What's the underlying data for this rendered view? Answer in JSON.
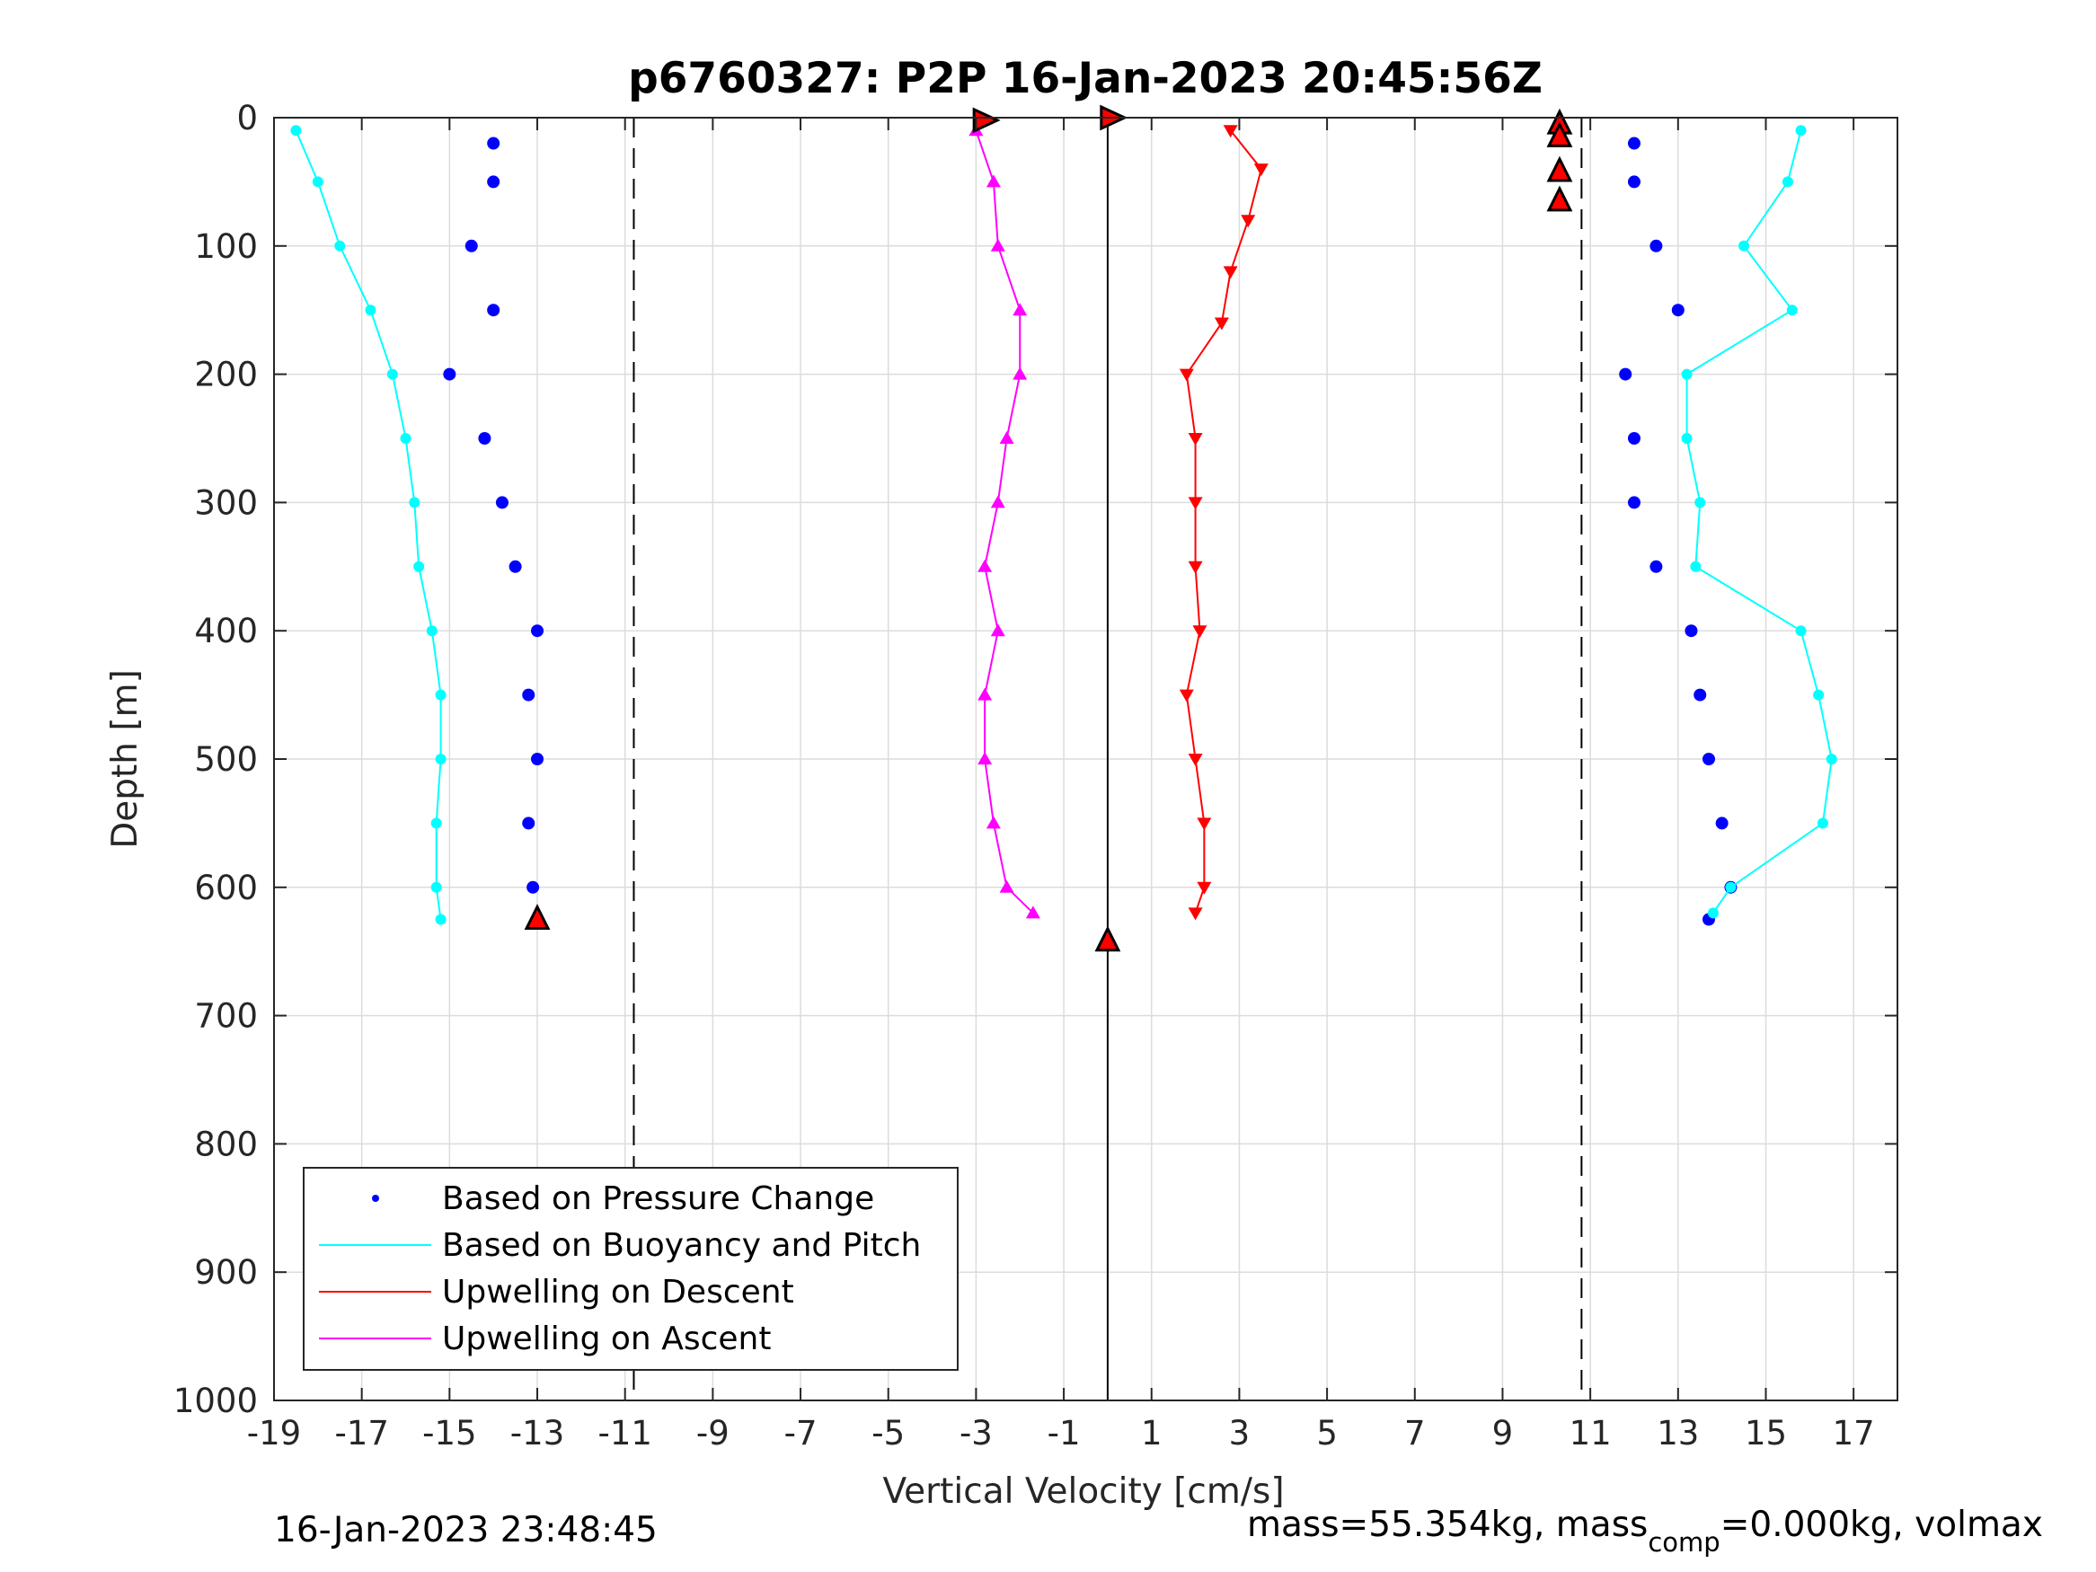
{
  "chart_data": {
    "type": "scatter",
    "title": "p6760327: P2P 16-Jan-2023 20:45:56Z",
    "xlabel": "Vertical Velocity [cm/s]",
    "ylabel": "Depth [m]",
    "xlim": [
      -19,
      18
    ],
    "ylim": [
      0,
      1000
    ],
    "y_reversed": true,
    "grid": true,
    "legend_position": "bottom-left",
    "x_ticks": [
      "-19",
      "-17",
      "-15",
      "-13",
      "-11",
      "-9",
      "-7",
      "-5",
      "-3",
      "-1",
      "1",
      "3",
      "5",
      "7",
      "9",
      "11",
      "13",
      "15",
      "17"
    ],
    "y_ticks": [
      "0",
      "100",
      "200",
      "300",
      "400",
      "500",
      "600",
      "700",
      "800",
      "900",
      "1000"
    ],
    "legend": [
      {
        "label": "Based on Pressure Change",
        "color": "#0000ff",
        "style": "dot"
      },
      {
        "label": "Based on Buoyancy and Pitch",
        "color": "#00ffff",
        "style": "line"
      },
      {
        "label": "Upwelling on Descent",
        "color": "#ff0000",
        "style": "line"
      },
      {
        "label": "Upwelling on Ascent",
        "color": "#ff00ff",
        "style": "line"
      }
    ],
    "reference_lines": {
      "solid_x": 0,
      "dashed_x": [
        -10.8,
        10.8
      ]
    },
    "series": [
      {
        "name": "Based on Pressure Change (descent)",
        "color": "#0000ff",
        "depth": [
          20,
          50,
          100,
          150,
          200,
          250,
          300,
          350,
          400,
          450,
          500,
          550,
          600,
          625
        ],
        "velocity": [
          -14.0,
          -14.0,
          -14.5,
          -14.0,
          -15.0,
          -14.2,
          -13.8,
          -13.5,
          -13.0,
          -13.2,
          -13.0,
          -13.2,
          -13.1,
          -13.0
        ]
      },
      {
        "name": "Based on Pressure Change (ascent)",
        "color": "#0000ff",
        "depth": [
          625,
          600,
          550,
          500,
          450,
          400,
          350,
          300,
          250,
          200,
          150,
          100,
          50,
          20
        ],
        "velocity": [
          13.7,
          14.2,
          14.0,
          13.7,
          13.5,
          13.3,
          12.5,
          12.0,
          12.0,
          11.8,
          13.0,
          12.5,
          12.0,
          12.0
        ]
      },
      {
        "name": "Based on Buoyancy and Pitch (descent)",
        "color": "#00ffff",
        "depth": [
          10,
          50,
          100,
          150,
          200,
          250,
          300,
          350,
          400,
          450,
          500,
          550,
          600,
          625
        ],
        "velocity": [
          -18.5,
          -18.0,
          -17.5,
          -16.8,
          -16.3,
          -16.0,
          -15.8,
          -15.7,
          -15.4,
          -15.2,
          -15.2,
          -15.3,
          -15.3,
          -15.2
        ]
      },
      {
        "name": "Based on Buoyancy and Pitch (ascent)",
        "color": "#00ffff",
        "depth": [
          620,
          600,
          550,
          500,
          450,
          400,
          350,
          300,
          250,
          200,
          150,
          100,
          50,
          10
        ],
        "velocity": [
          13.8,
          14.2,
          16.3,
          16.5,
          16.2,
          15.8,
          13.4,
          13.5,
          13.2,
          13.2,
          15.6,
          14.5,
          15.5,
          15.8
        ]
      },
      {
        "name": "Upwelling on Descent",
        "color": "#ff0000",
        "depth": [
          10,
          40,
          80,
          120,
          160,
          200,
          250,
          300,
          350,
          400,
          450,
          500,
          550,
          600,
          620
        ],
        "velocity": [
          2.8,
          3.5,
          3.2,
          2.8,
          2.6,
          1.8,
          2.0,
          2.0,
          2.0,
          2.1,
          1.8,
          2.0,
          2.2,
          2.2,
          2.0
        ]
      },
      {
        "name": "Upwelling on Ascent",
        "color": "#ff00ff",
        "depth": [
          620,
          600,
          550,
          500,
          450,
          400,
          350,
          300,
          250,
          200,
          150,
          100,
          50,
          10
        ],
        "velocity": [
          -1.7,
          -2.3,
          -2.6,
          -2.8,
          -2.8,
          -2.5,
          -2.8,
          -2.5,
          -2.3,
          -2.0,
          -2.0,
          -2.5,
          -2.6,
          -3.0
        ]
      }
    ],
    "markers": [
      {
        "velocity": -2.8,
        "depth": 2,
        "shape": "triangle-right",
        "fill": "#ff0000"
      },
      {
        "velocity": 0.1,
        "depth": 0,
        "shape": "triangle-right",
        "fill": "#ff0000"
      },
      {
        "velocity": 10.3,
        "depth": 5,
        "shape": "triangle-up",
        "fill": "#ff0000"
      },
      {
        "velocity": 10.3,
        "depth": 15,
        "shape": "triangle-up",
        "fill": "#ff0000"
      },
      {
        "velocity": 10.3,
        "depth": 42,
        "shape": "triangle-up",
        "fill": "#ff0000"
      },
      {
        "velocity": 10.3,
        "depth": 65,
        "shape": "triangle-up",
        "fill": "#ff0000"
      },
      {
        "velocity": 0.0,
        "depth": 642,
        "shape": "triangle-up",
        "fill": "#ff0000"
      },
      {
        "velocity": -13.0,
        "depth": 625,
        "shape": "triangle-up",
        "fill": "#ff0000"
      }
    ]
  },
  "footer": {
    "timestamp": "16-Jan-2023 23:48:45",
    "mass_prefix": "mass=55.354kg, mass",
    "mass_sub": "comp",
    "mass_suffix": "=0.000kg, volmax"
  }
}
